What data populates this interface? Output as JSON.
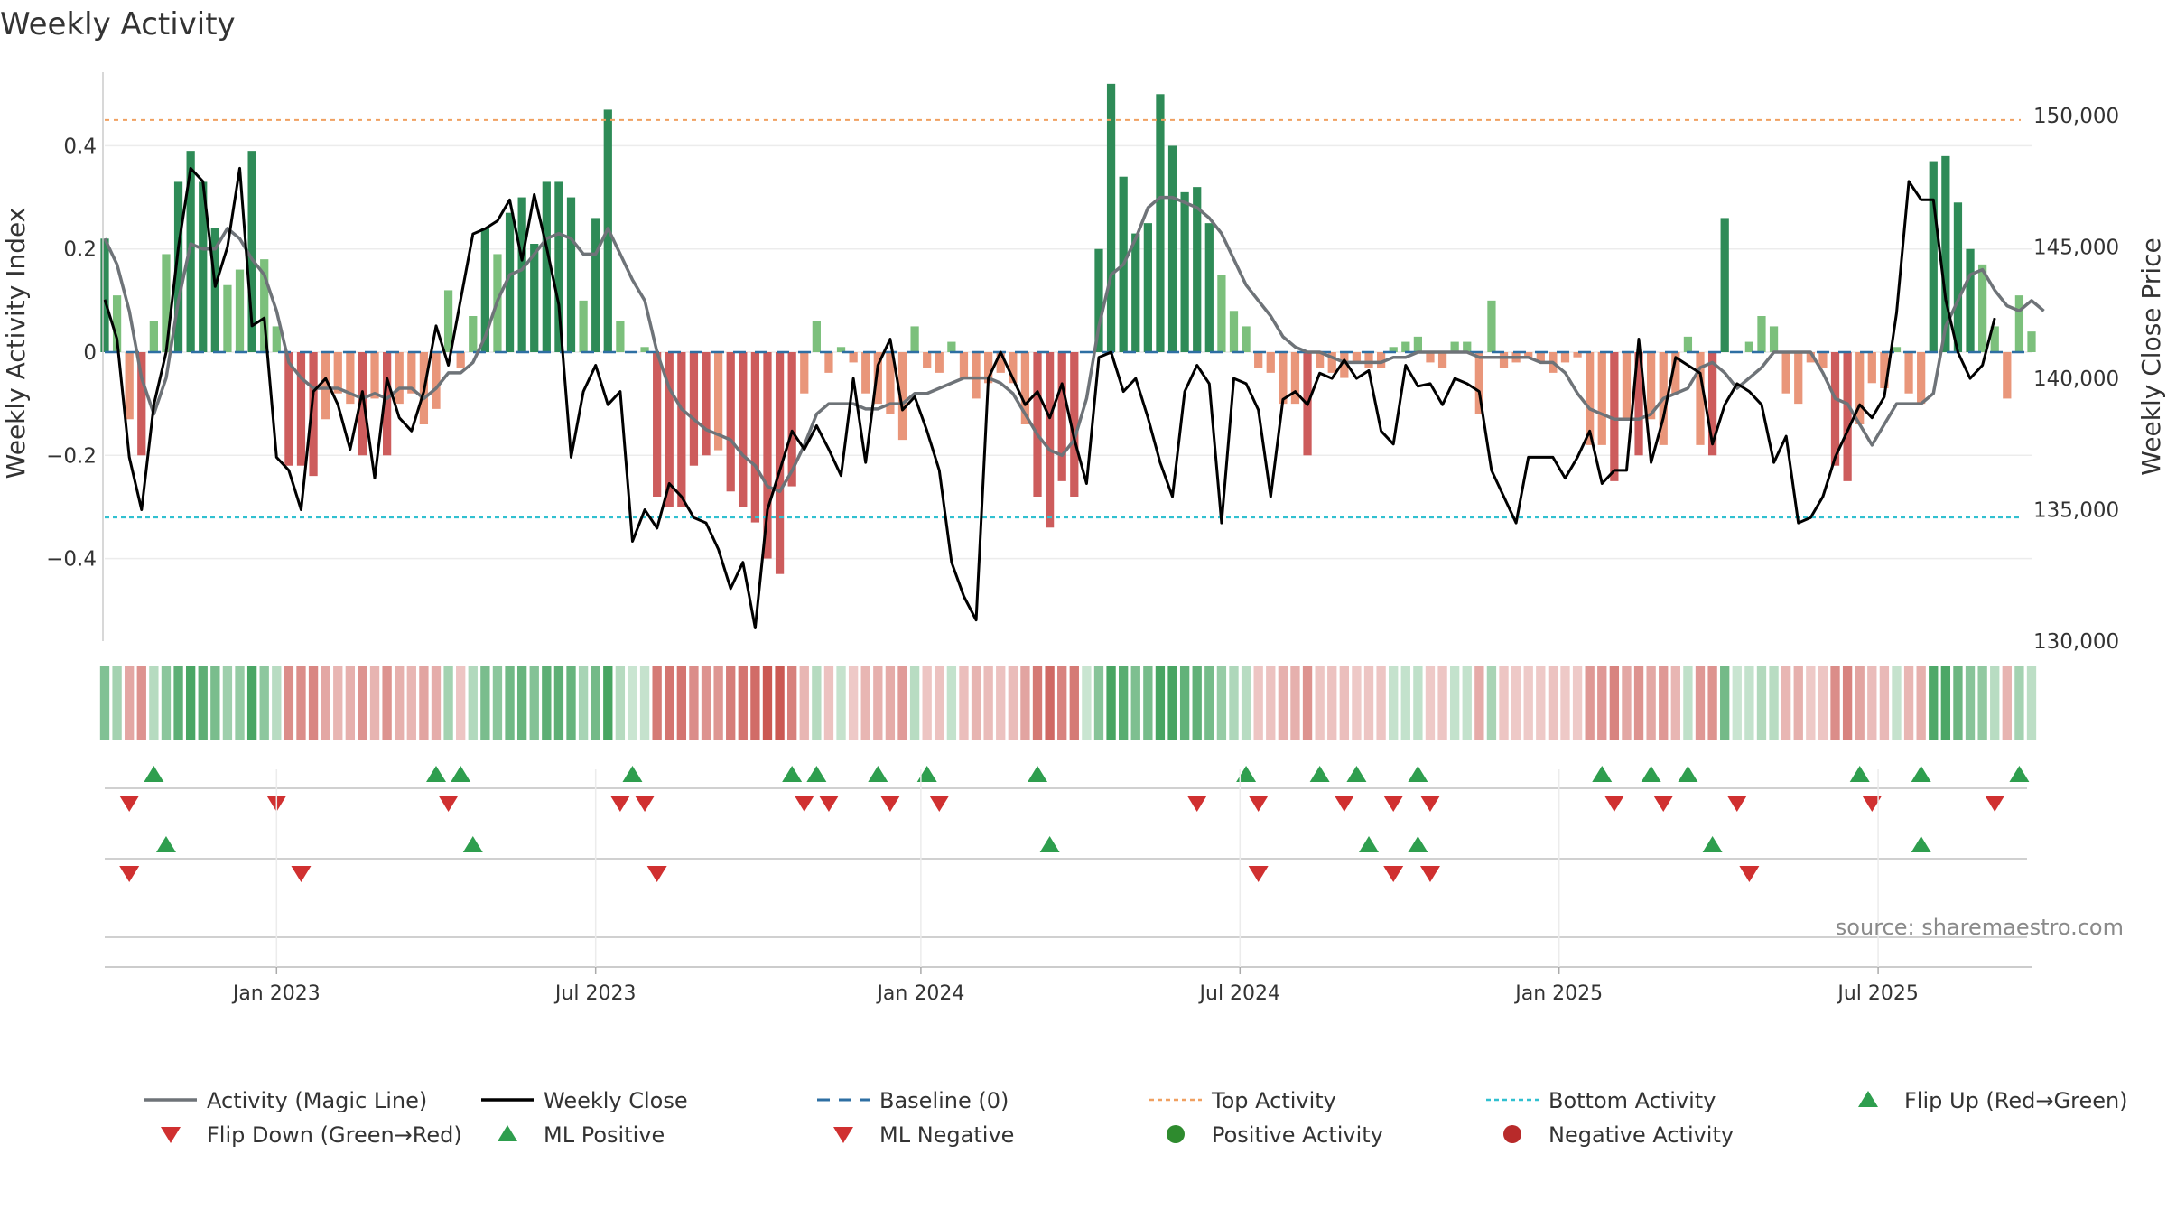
{
  "chart_data": {
    "type": "bar",
    "title": "Weekly Activity",
    "ylabel": "Weekly Activity Index",
    "y2label": "Weekly Close Price",
    "ylim": [
      -0.56,
      0.56
    ],
    "y2lim": [
      130000,
      152000
    ],
    "yticks": [
      {
        "v": 0.4,
        "label": "0.4"
      },
      {
        "v": 0.2,
        "label": "0.2"
      },
      {
        "v": 0.0,
        "label": "0"
      },
      {
        "v": -0.2,
        "label": "−0.2"
      },
      {
        "v": -0.4,
        "label": "−0.4"
      }
    ],
    "y2ticks": [
      {
        "v": 150000,
        "label": "150,000"
      },
      {
        "v": 145000,
        "label": "145,000"
      },
      {
        "v": 140000,
        "label": "140,000"
      },
      {
        "v": 135000,
        "label": "135,000"
      },
      {
        "v": 130000,
        "label": "130,000"
      }
    ],
    "xlim": [
      0,
      157
    ],
    "xticks": [
      {
        "i": 14,
        "label": "Jan 2023"
      },
      {
        "i": 40,
        "label": "Jul 2023"
      },
      {
        "i": 66.5,
        "label": "Jan 2024"
      },
      {
        "i": 92.5,
        "label": "Jul 2024"
      },
      {
        "i": 118.5,
        "label": "Jan 2025"
      },
      {
        "i": 144.5,
        "label": "Jul 2025"
      }
    ],
    "top_activity": 0.45,
    "bottom_activity": -0.32,
    "activity": [
      0.22,
      0.11,
      -0.13,
      -0.2,
      0.06,
      0.19,
      0.33,
      0.39,
      0.33,
      0.24,
      0.13,
      0.16,
      0.39,
      0.18,
      0.05,
      -0.22,
      -0.22,
      -0.24,
      -0.13,
      -0.08,
      -0.1,
      -0.2,
      -0.09,
      -0.2,
      -0.1,
      -0.08,
      -0.14,
      -0.11,
      0.12,
      -0.03,
      0.07,
      0.24,
      0.19,
      0.27,
      0.3,
      0.21,
      0.33,
      0.33,
      0.3,
      0.1,
      0.26,
      0.47,
      0.06,
      0.0,
      0.01,
      -0.28,
      -0.3,
      -0.3,
      -0.22,
      -0.2,
      -0.19,
      -0.27,
      -0.3,
      -0.33,
      -0.4,
      -0.43,
      -0.26,
      -0.08,
      0.06,
      -0.04,
      0.01,
      -0.02,
      -0.08,
      -0.1,
      -0.12,
      -0.17,
      0.05,
      -0.03,
      -0.04,
      0.02,
      -0.05,
      -0.09,
      -0.06,
      -0.04,
      -0.06,
      -0.14,
      -0.28,
      -0.34,
      -0.25,
      -0.28,
      0.0,
      0.2,
      0.52,
      0.34,
      0.23,
      0.25,
      0.5,
      0.4,
      0.31,
      0.32,
      0.25,
      0.15,
      0.08,
      0.05,
      -0.03,
      -0.04,
      -0.1,
      -0.1,
      -0.2,
      -0.03,
      -0.04,
      -0.05,
      -0.02,
      -0.03,
      -0.03,
      0.01,
      0.02,
      0.03,
      -0.02,
      -0.03,
      0.02,
      0.02,
      -0.12,
      0.1,
      -0.03,
      -0.02,
      -0.01,
      -0.02,
      -0.04,
      -0.02,
      -0.01,
      -0.18,
      -0.18,
      -0.25,
      -0.13,
      -0.2,
      -0.13,
      -0.18,
      -0.08,
      0.03,
      -0.18,
      -0.2,
      0.26,
      0.0,
      0.02,
      0.07,
      0.05,
      -0.08,
      -0.1,
      -0.02,
      -0.03,
      -0.22,
      -0.25,
      -0.14,
      -0.06,
      -0.07,
      0.01,
      -0.08,
      -0.1,
      0.37,
      0.38,
      0.29,
      0.2,
      0.17,
      0.05,
      -0.09,
      0.11,
      0.04
    ],
    "close": [
      143,
      141.5,
      137,
      135,
      139,
      141,
      145,
      148,
      147.5,
      143.5,
      145,
      148,
      142,
      142.3,
      137,
      136.5,
      135,
      139.5,
      140,
      139,
      137.3,
      139.5,
      136.2,
      140,
      138.5,
      138,
      139.5,
      142,
      140.5,
      143,
      145.5,
      145.7,
      146,
      146.8,
      144.5,
      147,
      145,
      142.8,
      137,
      139.5,
      140.5,
      139,
      139.5,
      133.8,
      135,
      134.3,
      136,
      135.5,
      134.7,
      134.5,
      133.5,
      132,
      133,
      130.5,
      135,
      136.5,
      138,
      137.3,
      138.2,
      137.3,
      136.3,
      140,
      136.8,
      140.5,
      141.5,
      138.8,
      139.3,
      138,
      136.5,
      133,
      131.7,
      130.8,
      140,
      141,
      140,
      139,
      139.5,
      138.5,
      139.8,
      137.7,
      136,
      140.8,
      141,
      139.5,
      140,
      138.5,
      136.8,
      135.5,
      139.5,
      140.5,
      139.8,
      134.5,
      140,
      139.8,
      138.8,
      135.5,
      139.2,
      139.5,
      139,
      140.2,
      140,
      140.7,
      140,
      140.3,
      138,
      137.5,
      140.5,
      139.7,
      139.8,
      139,
      140,
      139.8,
      139.5,
      136.5,
      135.5,
      134.5,
      137,
      137,
      137,
      136.2,
      137,
      138,
      136,
      136.5,
      136.5,
      141.5,
      136.8,
      138.5,
      140.8,
      140.5,
      140.2,
      137.5,
      139,
      139.8,
      139.5,
      139,
      136.8,
      137.8,
      134.5,
      134.7,
      135.5,
      137,
      138,
      139,
      138.5,
      139.3,
      142.5,
      147.5,
      146.8,
      146.8,
      143,
      141,
      140,
      140.5,
      142.3
    ],
    "magic_line": [
      0.22,
      0.17,
      0.08,
      -0.05,
      -0.12,
      -0.05,
      0.1,
      0.21,
      0.2,
      0.2,
      0.24,
      0.22,
      0.18,
      0.15,
      0.08,
      -0.02,
      -0.05,
      -0.07,
      -0.07,
      -0.07,
      -0.08,
      -0.09,
      -0.08,
      -0.09,
      -0.07,
      -0.07,
      -0.09,
      -0.07,
      -0.04,
      -0.04,
      -0.02,
      0.03,
      0.1,
      0.15,
      0.16,
      0.19,
      0.22,
      0.23,
      0.22,
      0.19,
      0.19,
      0.24,
      0.19,
      0.14,
      0.1,
      0.0,
      -0.07,
      -0.11,
      -0.13,
      -0.15,
      -0.16,
      -0.17,
      -0.2,
      -0.22,
      -0.26,
      -0.27,
      -0.23,
      -0.18,
      -0.12,
      -0.1,
      -0.1,
      -0.1,
      -0.11,
      -0.11,
      -0.1,
      -0.1,
      -0.08,
      -0.08,
      -0.07,
      -0.06,
      -0.05,
      -0.05,
      -0.05,
      -0.06,
      -0.08,
      -0.12,
      -0.16,
      -0.19,
      -0.2,
      -0.17,
      -0.09,
      0.05,
      0.15,
      0.17,
      0.22,
      0.28,
      0.3,
      0.3,
      0.29,
      0.28,
      0.26,
      0.23,
      0.18,
      0.13,
      0.1,
      0.07,
      0.03,
      0.01,
      0.0,
      0.0,
      -0.01,
      -0.02,
      -0.02,
      -0.02,
      -0.02,
      -0.01,
      -0.01,
      0.0,
      0.0,
      0.0,
      0.0,
      0.0,
      -0.01,
      -0.01,
      -0.01,
      -0.01,
      -0.01,
      -0.02,
      -0.02,
      -0.04,
      -0.08,
      -0.11,
      -0.12,
      -0.13,
      -0.13,
      -0.13,
      -0.12,
      -0.09,
      -0.08,
      -0.07,
      -0.03,
      -0.02,
      -0.04,
      -0.07,
      -0.05,
      -0.03,
      0.0,
      0.0,
      0.0,
      0.0,
      -0.04,
      -0.09,
      -0.1,
      -0.14,
      -0.18,
      -0.14,
      -0.1,
      -0.1,
      -0.1,
      -0.08,
      0.05,
      0.1,
      0.15,
      0.16,
      0.12,
      0.09,
      0.08,
      0.1,
      0.08
    ],
    "markers": {
      "flip_up": [
        4,
        27,
        29,
        43,
        56,
        58,
        63,
        67,
        76,
        93,
        99,
        102,
        107,
        122,
        126,
        129,
        143,
        148,
        156
      ],
      "flip_down": [
        2,
        14,
        28,
        42,
        44,
        57,
        59,
        64,
        68,
        89,
        94,
        101,
        105,
        108,
        123,
        127,
        133,
        144,
        154
      ],
      "ml_positive": [
        5,
        30,
        77,
        103,
        107,
        131,
        148
      ],
      "ml_negative": [
        2,
        16,
        45,
        94,
        105,
        108,
        134
      ]
    },
    "legend": [
      {
        "label": "Activity (Magic Line)",
        "kind": "line",
        "color": "#6e7378"
      },
      {
        "label": "Weekly Close",
        "kind": "line",
        "color": "#000000"
      },
      {
        "label": "Baseline (0)",
        "kind": "dash",
        "color": "#2e6fa3"
      },
      {
        "label": "Top Activity",
        "kind": "dot",
        "color": "#f0a060"
      },
      {
        "label": "Bottom Activity",
        "kind": "dot",
        "color": "#30c0d0"
      },
      {
        "label": "Flip Up (Red→Green)",
        "kind": "tri-up",
        "color": "#2e9e4e"
      },
      {
        "label": "Flip Down (Green→Red)",
        "kind": "tri-down",
        "color": "#d03030"
      },
      {
        "label": "ML Positive",
        "kind": "tri-up",
        "color": "#2e9e4e"
      },
      {
        "label": "ML Negative",
        "kind": "tri-down",
        "color": "#d03030"
      },
      {
        "label": "Positive Activity",
        "kind": "circle",
        "color": "#2e8b2e"
      },
      {
        "label": "Negative Activity",
        "kind": "circle",
        "color": "#b82a2a"
      }
    ],
    "source": "source: sharemaestro.com",
    "colors": {
      "pos_strong": "#2e8b57",
      "pos_light": "#7cc07c",
      "neg_strong": "#cd5c5c",
      "neg_light": "#e9967a",
      "magic_line": "#6e7378",
      "close": "#000000",
      "baseline": "#2e6fa3",
      "top": "#f0a060",
      "bottom": "#30c0d0",
      "up": "#2e9e4e",
      "down": "#d03030"
    }
  }
}
